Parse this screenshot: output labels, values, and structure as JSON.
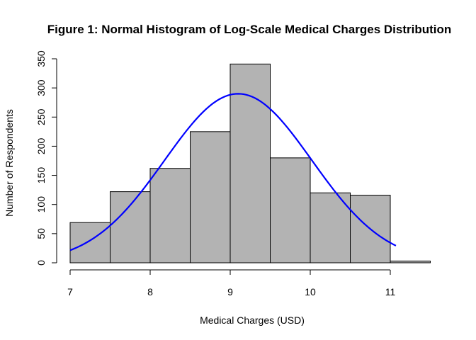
{
  "chart_data": {
    "type": "bar",
    "title": "Figure 1: Normal Histogram of Log-Scale Medical Charges Distribution",
    "xlabel": "Medical Charges (USD)",
    "ylabel": "Number of Respondents",
    "xlim": [
      7,
      11.5
    ],
    "ylim": [
      0,
      350
    ],
    "xticks": [
      "7",
      "8",
      "9",
      "10",
      "11"
    ],
    "yticks": [
      "0",
      "50",
      "100",
      "150",
      "200",
      "250",
      "300",
      "350"
    ],
    "bins": [
      {
        "from": 7.0,
        "to": 7.5,
        "count": 69
      },
      {
        "from": 7.5,
        "to": 8.0,
        "count": 122
      },
      {
        "from": 8.0,
        "to": 8.5,
        "count": 162
      },
      {
        "from": 8.5,
        "to": 9.0,
        "count": 225
      },
      {
        "from": 9.0,
        "to": 9.5,
        "count": 341
      },
      {
        "from": 9.5,
        "to": 10.0,
        "count": 180
      },
      {
        "from": 10.0,
        "to": 10.5,
        "count": 120
      },
      {
        "from": 10.5,
        "to": 11.0,
        "count": 116
      },
      {
        "from": 11.0,
        "to": 11.5,
        "count": 3
      }
    ],
    "bar_color": "#b3b3b3",
    "curve": {
      "type": "normal",
      "mean": 9.1,
      "sd": 0.92,
      "peak": 290,
      "x_range": [
        7.0,
        11.07
      ],
      "color": "#0000ff"
    },
    "grid": false
  }
}
